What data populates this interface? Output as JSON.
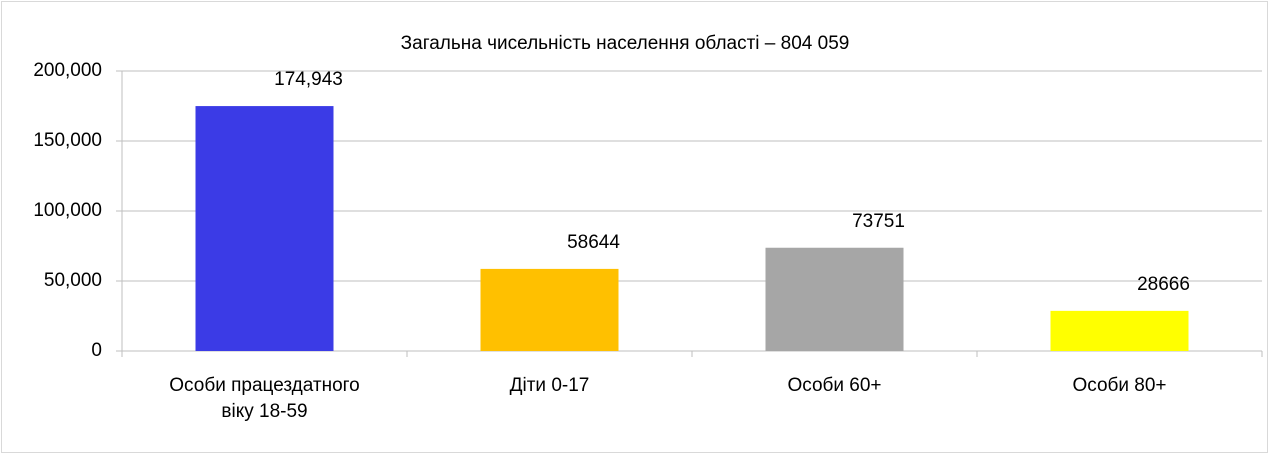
{
  "chart_data": {
    "type": "bar",
    "title": "Загальна чисельність населення області – 804 059",
    "categories": [
      "Особи працездатного віку 18-59",
      "Діти 0-17",
      "Особи 60+",
      "Особи 80+"
    ],
    "values": [
      174943,
      58644,
      73751,
      28666
    ],
    "value_labels": [
      "174,943",
      "58644",
      "73751",
      "28666"
    ],
    "colors": [
      "#3b3be6",
      "#ffc000",
      "#a6a6a6",
      "#ffff00"
    ],
    "ylim": [
      0,
      200000
    ],
    "yticks": [
      0,
      {
        "value": 50000,
        "label": "50,000"
      },
      {
        "value": 100000,
        "label": "100,000"
      },
      {
        "value": 150000,
        "label": "150,000"
      },
      {
        "value": 200000,
        "label": "200,000"
      }
    ],
    "grid": true
  }
}
